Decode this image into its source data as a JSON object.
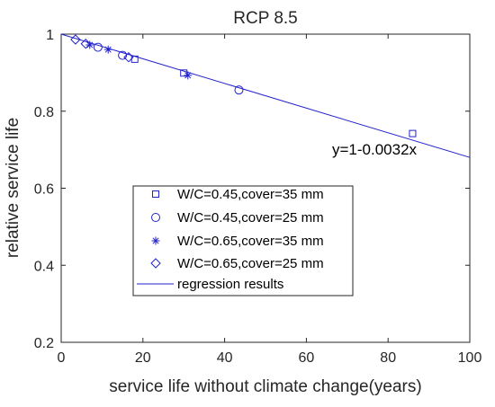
{
  "chart_data": {
    "type": "scatter",
    "title": "RCP 8.5",
    "xlabel": "service life without climate change(years)",
    "ylabel": "relative service life",
    "xlim": [
      0,
      100
    ],
    "ylim": [
      0.2,
      1.0
    ],
    "xticks": [
      0,
      20,
      40,
      60,
      80,
      100
    ],
    "yticks": [
      0.2,
      0.4,
      0.6,
      0.8,
      1.0
    ],
    "xtick_labels": [
      "0",
      "20",
      "40",
      "60",
      "80",
      "100"
    ],
    "ytick_labels": [
      "0.2",
      "0.4",
      "0.6",
      "0.8",
      "1"
    ],
    "grid": false,
    "legend_position": "center-left",
    "color": "#2222cc",
    "series": [
      {
        "name": "W/C=0.45,cover=35 mm",
        "marker": "square",
        "points": [
          [
            18,
            0.935
          ],
          [
            30,
            0.899
          ],
          [
            86,
            0.742
          ]
        ]
      },
      {
        "name": "W/C=0.45,cover=25 mm",
        "marker": "circle",
        "points": [
          [
            9,
            0.966
          ],
          [
            15,
            0.945
          ],
          [
            43.5,
            0.855
          ]
        ]
      },
      {
        "name": "W/C=0.65,cover=35 mm",
        "marker": "asterisk",
        "points": [
          [
            7,
            0.972
          ],
          [
            11.5,
            0.96
          ],
          [
            31,
            0.893
          ]
        ]
      },
      {
        "name": "W/C=0.65,cover=25 mm",
        "marker": "diamond",
        "points": [
          [
            3.5,
            0.986
          ],
          [
            6,
            0.975
          ],
          [
            16.5,
            0.94
          ]
        ]
      }
    ],
    "regression": {
      "name": "regression results",
      "intercept": 1,
      "slope": -0.0032,
      "x_range": [
        0,
        100
      ],
      "equation_label": "y=1-0.0032x"
    }
  }
}
